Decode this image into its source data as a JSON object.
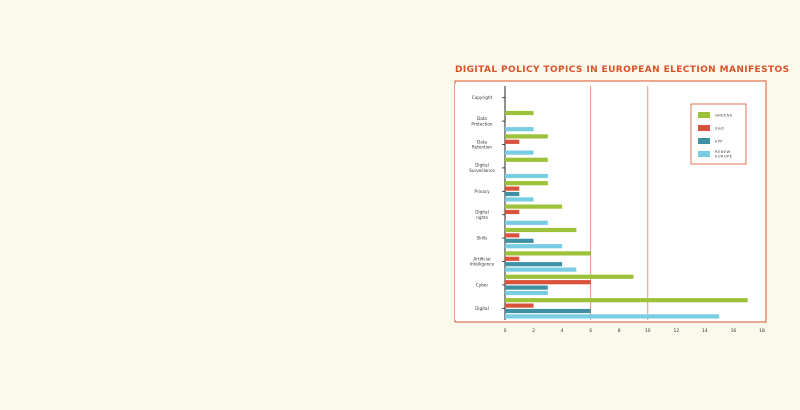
{
  "chart_data": {
    "type": "bar",
    "orientation": "horizontal",
    "title": "DIGITAL POLICY TOPICS IN EUROPEAN ELECTION MANIFESTOS",
    "xlabel": "",
    "ylabel": "",
    "xlim": [
      0,
      18
    ],
    "x_ticks": [
      "0",
      "2",
      "4",
      "6",
      "8",
      "10",
      "12",
      "14",
      "16",
      "18"
    ],
    "grid": "vertical lines at 6 and 10",
    "legend_placement": "top-right",
    "categories": [
      "Copyright",
      "Data Protection",
      "Data Retention",
      "Digital Surveillance",
      "Privacy",
      "Digital rights",
      "Skills",
      "Artificial Intelligence",
      "Cyber",
      "Digital"
    ],
    "series": [
      {
        "name": "GREENS",
        "color": "#9cc23a",
        "values": [
          0,
          2,
          3,
          3,
          3,
          4,
          5,
          6,
          9,
          17
        ]
      },
      {
        "name": "S&D",
        "color": "#d9523b",
        "values": [
          0,
          0,
          1,
          0,
          1,
          1,
          1,
          1,
          6,
          2
        ]
      },
      {
        "name": "EPP",
        "color": "#3e91a3",
        "values": [
          0,
          0,
          0,
          0,
          1,
          0,
          2,
          4,
          3,
          6
        ]
      },
      {
        "name": "RENEW EUROPE",
        "color": "#78cde3",
        "values": [
          0,
          2,
          2,
          3,
          2,
          3,
          4,
          5,
          3,
          15
        ]
      }
    ]
  },
  "colors": {
    "accent": "#d9532a",
    "background": "#fbf8ec",
    "plot_background": "#ffffff"
  }
}
